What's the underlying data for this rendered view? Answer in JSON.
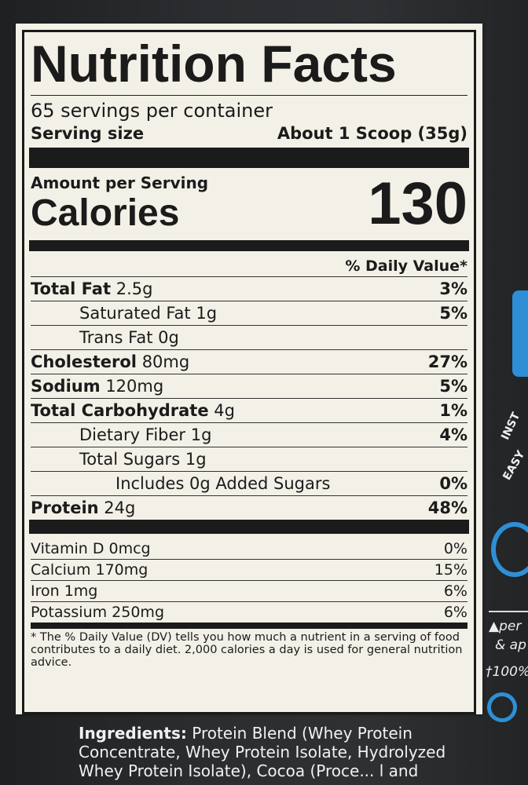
{
  "label": {
    "title": "Nutrition Facts",
    "servings": "65 servings per container",
    "serving_size_label": "Serving size",
    "serving_size_value": "About 1 Scoop (35g)",
    "amount_per_serving": "Amount per Serving",
    "calories_label": "Calories",
    "calories_value": "130",
    "dv_header": "% Daily Value*",
    "nutrients": [
      {
        "name": "Total Fat",
        "amount": "2.5g",
        "dv": "3%"
      },
      {
        "name": "Saturated Fat",
        "amount": "1g",
        "dv": "5%"
      },
      {
        "name": "Trans Fat",
        "amount": "0g",
        "dv": ""
      },
      {
        "name": "Cholesterol",
        "amount": "80mg",
        "dv": "27%"
      },
      {
        "name": "Sodium",
        "amount": "120mg",
        "dv": "5%"
      },
      {
        "name": "Total Carbohydrate",
        "amount": "4g",
        "dv": "1%"
      },
      {
        "name": "Dietary Fiber",
        "amount": "1g",
        "dv": "4%"
      },
      {
        "name": "Total Sugars",
        "amount": "1g",
        "dv": ""
      },
      {
        "name": "Includes 0g Added Sugars",
        "amount": "",
        "dv": "0%"
      },
      {
        "name": "Protein",
        "amount": "24g",
        "dv": "48%"
      }
    ],
    "vitamins": [
      {
        "name": "Vitamin D 0mcg",
        "dv": "0%"
      },
      {
        "name": "Calcium 170mg",
        "dv": "15%"
      },
      {
        "name": "Iron 1mg",
        "dv": "6%"
      },
      {
        "name": "Potassium 250mg",
        "dv": "6%"
      }
    ],
    "footnote": "* The % Daily Value (DV) tells you how much a nutrient in a serving of food contributes to a daily diet. 2,000 calories a  day is used for general nutrition advice."
  },
  "ingredients": {
    "label": "Ingredients:",
    "text": "Protein Blend (Whey Protein Concentrate, Whey Protein Isolate, Hydrolyzed Whey Protein Isolate), Cocoa (Proce... l and"
  },
  "side": {
    "t1": "INST",
    "t2": "EASY",
    "t3": "▲per",
    "t4": "& ap",
    "t5": "†100%"
  },
  "colors": {
    "background": "#25272a",
    "label": "#f3f0e7",
    "accent": "#2e8fd6"
  }
}
